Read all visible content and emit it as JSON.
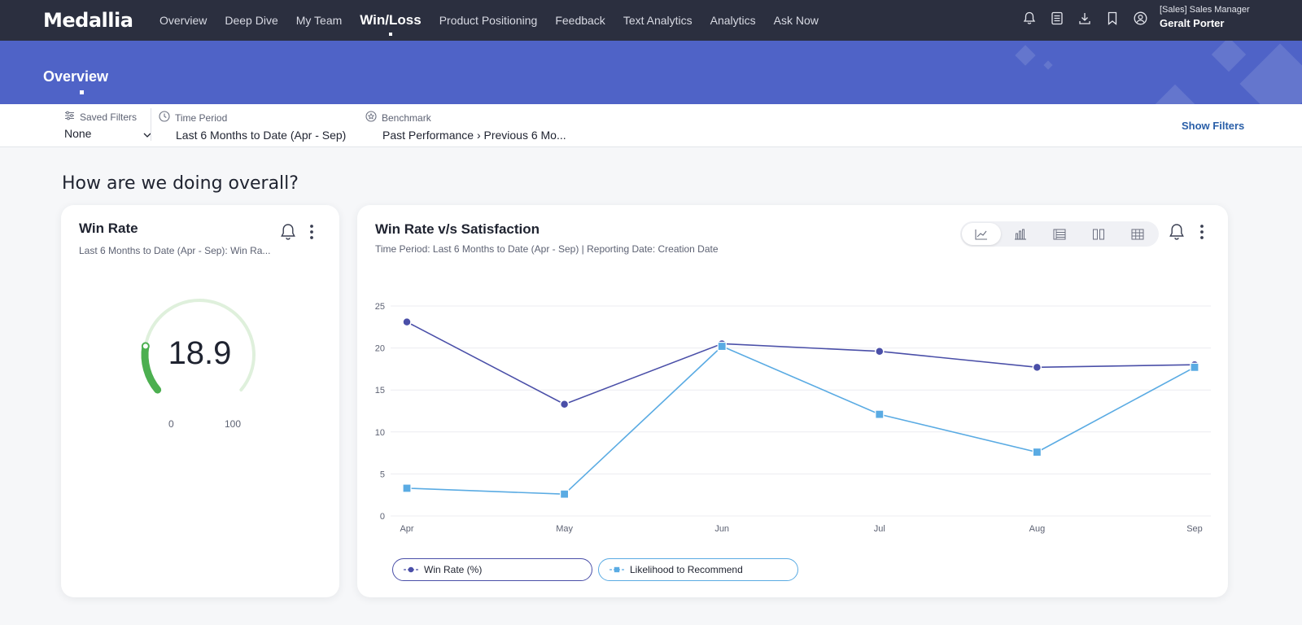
{
  "nav": {
    "logo": "Medallia",
    "links": [
      "Overview",
      "Deep Dive",
      "My Team",
      "Win/Loss",
      "Product Positioning",
      "Feedback",
      "Text Analytics",
      "Analytics",
      "Ask Now"
    ],
    "active": "Win/Loss",
    "icons": [
      "bell-icon",
      "checklist-icon",
      "download-icon",
      "bookmark-icon",
      "user-circle-icon"
    ],
    "user_role": "[Sales] Sales Manager",
    "user_name": "Geralt Porter"
  },
  "banner": {
    "title": "Overview",
    "color": "#4f63c7"
  },
  "filters": {
    "saved_label": "Saved Filters",
    "saved_value": "None",
    "time_label": "Time Period",
    "time_value": "Last 6 Months to Date (Apr - Sep)",
    "benchmark_label": "Benchmark",
    "benchmark_value": "Past Performance › Previous 6 Mo...",
    "show_filters": "Show Filters"
  },
  "section_heading": "How are we doing overall?",
  "win_rate_card": {
    "title": "Win Rate",
    "subtitle": "Last 6 Months to Date (Apr - Sep): Win Ra...",
    "value": "18.9",
    "gauge_min": "0",
    "gauge_max": "100",
    "gauge_fraction": 0.189,
    "gauge_color": "#4caf50"
  },
  "chart_card": {
    "title": "Win Rate v/s Satisfaction",
    "subtitle": "Time Period: Last 6 Months to Date (Apr - Sep) | Reporting Date: Creation Date",
    "view_icons": [
      "line-chart-icon",
      "bar-chart-icon",
      "list-chart-icon",
      "column-compare-icon",
      "table-icon"
    ]
  },
  "chart_data": {
    "type": "line",
    "categories": [
      "Apr",
      "May",
      "Jun",
      "Jul",
      "Aug",
      "Sep"
    ],
    "ylim": [
      0,
      25
    ],
    "yticks": [
      0,
      5,
      10,
      15,
      20,
      25
    ],
    "grid": true,
    "legend": "bottom-left",
    "series": [
      {
        "name": "Win Rate (%)",
        "values": [
          23.1,
          13.3,
          20.5,
          19.6,
          17.7,
          18.0
        ],
        "color": "#4a4fa8",
        "marker": "circle"
      },
      {
        "name": "Likelihood to Recommend",
        "values": [
          3.3,
          2.6,
          20.2,
          12.1,
          7.6,
          17.7
        ],
        "color": "#5aabe3",
        "marker": "square"
      }
    ]
  }
}
